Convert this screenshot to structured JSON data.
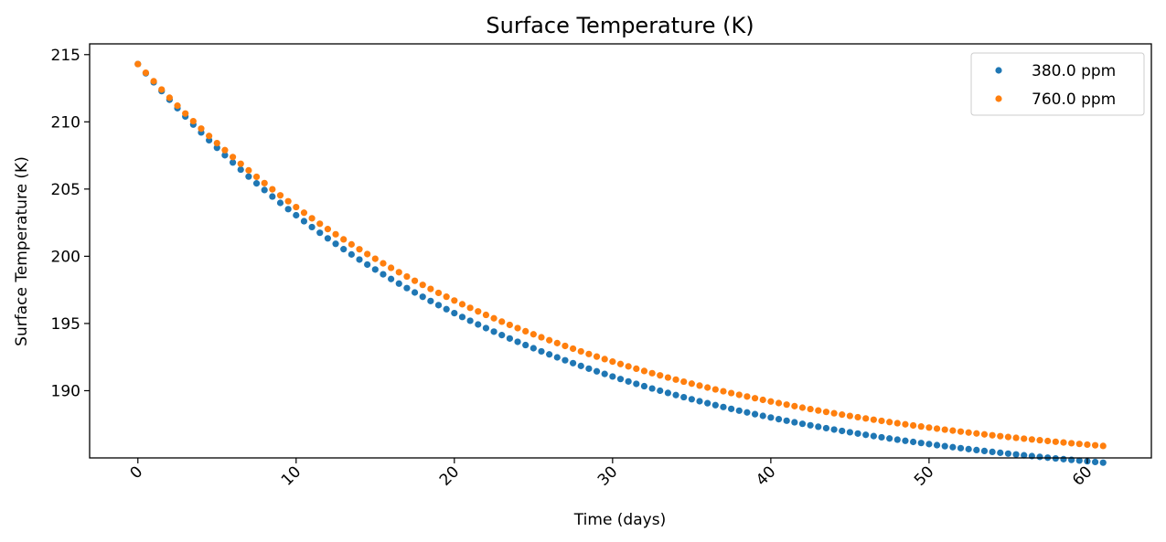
{
  "chart_data": {
    "type": "scatter",
    "title": "Surface Temperature (K)",
    "xlabel": "Time (days)",
    "ylabel": "Surface Temperature (K)",
    "xlim": [
      -3.05,
      64.05
    ],
    "ylim": [
      185.0,
      215.8
    ],
    "xticks": [
      0,
      10,
      20,
      30,
      40,
      50,
      60
    ],
    "xtick_labels": [
      "0",
      "10",
      "20",
      "30",
      "40",
      "50",
      "60"
    ],
    "yticks": [
      190,
      195,
      200,
      205,
      210,
      215
    ],
    "ytick_labels": [
      "190",
      "195",
      "200",
      "205",
      "210",
      "215"
    ],
    "xtick_rotation": 45,
    "grid": false,
    "legend_position": "top-right",
    "x": {
      "start": 0,
      "end": 61,
      "count": 123
    },
    "series": [
      {
        "name": "380.0 ppm",
        "color": "#1f77b4",
        "sample_values": {
          "0": 214.3,
          "10": 204.7,
          "20": 198.3,
          "30": 193.7,
          "40": 190.7,
          "50": 188.4,
          "61": 186.4
        },
        "model": {
          "asymptote": 182.4,
          "amplitude": 31.9,
          "tau_days": 23.0
        }
      },
      {
        "name": "760.0 ppm",
        "color": "#ff7f0e",
        "sample_values": {
          "0": 214.3,
          "10": 205.0,
          "20": 198.7,
          "30": 194.2,
          "40": 191.2,
          "50": 189.0,
          "61": 187.1
        },
        "model": {
          "asymptote": 183.6,
          "amplitude": 30.7,
          "tau_days": 23.5
        }
      }
    ]
  }
}
